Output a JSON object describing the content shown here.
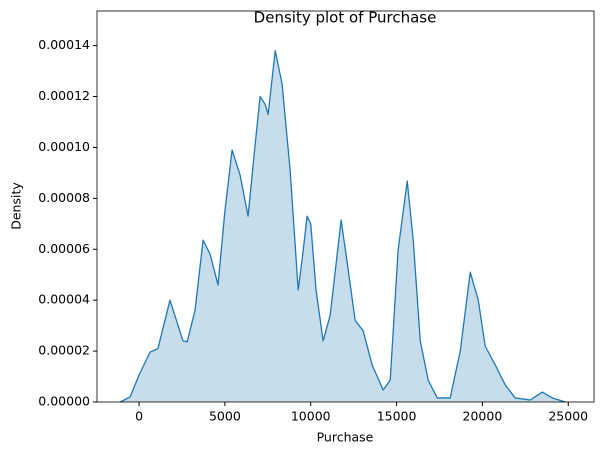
{
  "chart_data": {
    "type": "density",
    "title": "Density plot of Purchase",
    "x_label": "Purchase",
    "y_label": "Density",
    "color": "#1f77b4",
    "x": [
      -1100,
      -520,
      0,
      640,
      1100,
      1800,
      2560,
      2800,
      3260,
      3730,
      4140,
      4600,
      5000,
      5420,
      5890,
      6350,
      6760,
      7050,
      7340,
      7520,
      7930,
      8330,
      8800,
      9270,
      9500,
      9790,
      10000,
      10310,
      10720,
      11130,
      11770,
      12180,
      12590,
      13050,
      13580,
      14220,
      14630,
      15090,
      15620,
      15970,
      16380,
      16840,
      17370,
      18120,
      18710,
      19290,
      19760,
      20160,
      20750,
      21330,
      21910,
      22790,
      23490,
      24070,
      24830
    ],
    "values": [
      0,
      2e-06,
      1.06e-05,
      1.96e-05,
      2.1e-05,
      4e-05,
      2.4e-05,
      2.36e-05,
      3.6e-05,
      6.36e-05,
      5.8e-05,
      4.6e-05,
      7.5e-05,
      9.9e-05,
      8.9e-05,
      7.3e-05,
      0.000101,
      0.00012,
      0.000117,
      0.000113,
      0.000138,
      0.000125,
      9.1e-05,
      4.4e-05,
      5.6e-05,
      7.3e-05,
      7e-05,
      4.4e-05,
      2.4e-05,
      3.4e-05,
      7.15e-05,
      5.2e-05,
      3.2e-05,
      2.8e-05,
      1.45e-05,
      4.7e-06,
      8.6e-06,
      5.97e-05,
      8.68e-05,
      6.36e-05,
      2.4e-05,
      8.6e-06,
      1.6e-06,
      1.6e-06,
      2e-05,
      5.1e-05,
      4e-05,
      2.2e-05,
      1.45e-05,
      6.7e-06,
      1.6e-06,
      8e-07,
      3.9e-06,
      1.6e-06,
      0
    ],
    "xlim": [
      -2450,
      26500
    ],
    "xticks": [
      0,
      5000,
      10000,
      15000,
      20000,
      25000
    ],
    "ylim": [
      0,
      0.0001536
    ],
    "yticks": [
      {
        "value": 0,
        "label": "0.00000"
      },
      2e-05,
      4e-05,
      6e-05,
      8e-05,
      {
        "value": 0.0001,
        "label": "0.00010"
      },
      0.00012,
      0.00014
    ]
  }
}
